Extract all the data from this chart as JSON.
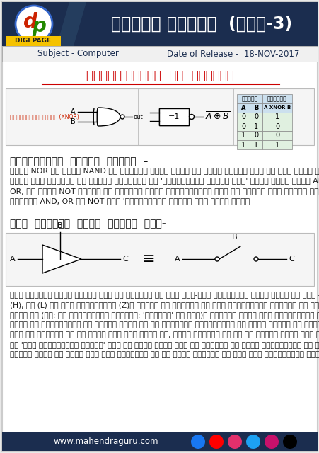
{
  "title_hindi": "लॉजिक गेट्स  (भाग-3)",
  "subject_label": "Subject - Computer",
  "date_label": "Date of Release -  18-NOV-2017",
  "section_title": "लॉजिक गेट्स  के  प्रकार",
  "gate_label": "इक्सक्लुसिव नॉर (XNOR)",
  "table_header_input": "इनपुट",
  "table_header_output": "आउटपुट",
  "table_col1": "A",
  "table_col2": "B",
  "table_col3": "A XNOR B",
  "table_data": [
    [
      0,
      0,
      1
    ],
    [
      0,
      1,
      0
    ],
    [
      1,
      0,
      0
    ],
    [
      1,
      1,
      1
    ]
  ],
  "universal_title": "यूनिवर्सल  लॉजिक  गेट्स  –",
  "universal_lines": [
    "केवल NOR या केवल NAND का प्रयोग करके किसी भी अन्य लॉजिक गेट का काम लिया जा",
    "सकता है। इसलिये इन लॉजिक द्वारों को 'यूनिवर्सल लॉजिक गेट' कहते हैं। केवल AND, या केवल",
    "OR, या केवल NOT गेटों का प्रयोग करके इच्छानुसार कोई भी लॉजिक फलन बनाने सम्भव नहीं है।",
    "इसलिये AND, OR और NOT गेट 'यूनिवर्सल लॉजिक गेट नहीं हैं।"
  ],
  "tri_title": "तीन  अवस्था  वाले  लॉजिक  गेट-",
  "tri_lines": [
    "तीन अवस्था वाले लॉजिक गेट के आउटपुट की तीन अलग-अलग अवस्थाएँ होती हैं। ये हैं - हाई",
    "(H), लो (L) और हाई इम्पीडेंस (Z)। लॉजिक की दृष्टि से हाई इम्पीडेंस अवस्था की कोई भूमिका",
    "नहीं है (अत: ये युक्तियाँ वस्तुत: 'बाइनरी' ही हैं)। किन्तु अपने हाई इम्पीडेंस वाली अवस्था के",
    "कारण इन युक्तियों का उपयोग डेटा बस पर विभिन्न युक्तियों से डेटा भेजने के लिये किया जाता",
    "है। जो युक्ति बस को डेटा भेज रही होती है, उसको छोड़कर उस बस से जुड़ी अन्य सभी युक्तियों",
    "को 'हाई इम्पीडेंस स्टेट' में कर दिया जाता है। इस प्रकार ये अन्य युक्तियाँ एक प्रकार से बस से",
    "जुड़ी होकर भी उससे अलग हैं क्योंकि बस और इनके आउटपुट के बीच हाई इम्पीडेंस मौजूद है।"
  ],
  "footer": "www.mahendraguru.com",
  "bg_color": "#e8e8e8",
  "header_bg": "#1b2d4f",
  "header_text_color": "#ffffff",
  "sub_header_bg": "#ffffff",
  "section_title_color": "#cc0000",
  "body_text_color": "#1a1a1a",
  "table_header_bg": "#cce0ee",
  "table_row_bg": "#e0f0e0",
  "digi_page_color": "#f5c200",
  "footer_bg": "#1b2d4f",
  "icon_colors": [
    "#1877f2",
    "#ff0000",
    "#e1306c",
    "#1da1f2",
    "#c8116b",
    "#000000"
  ]
}
